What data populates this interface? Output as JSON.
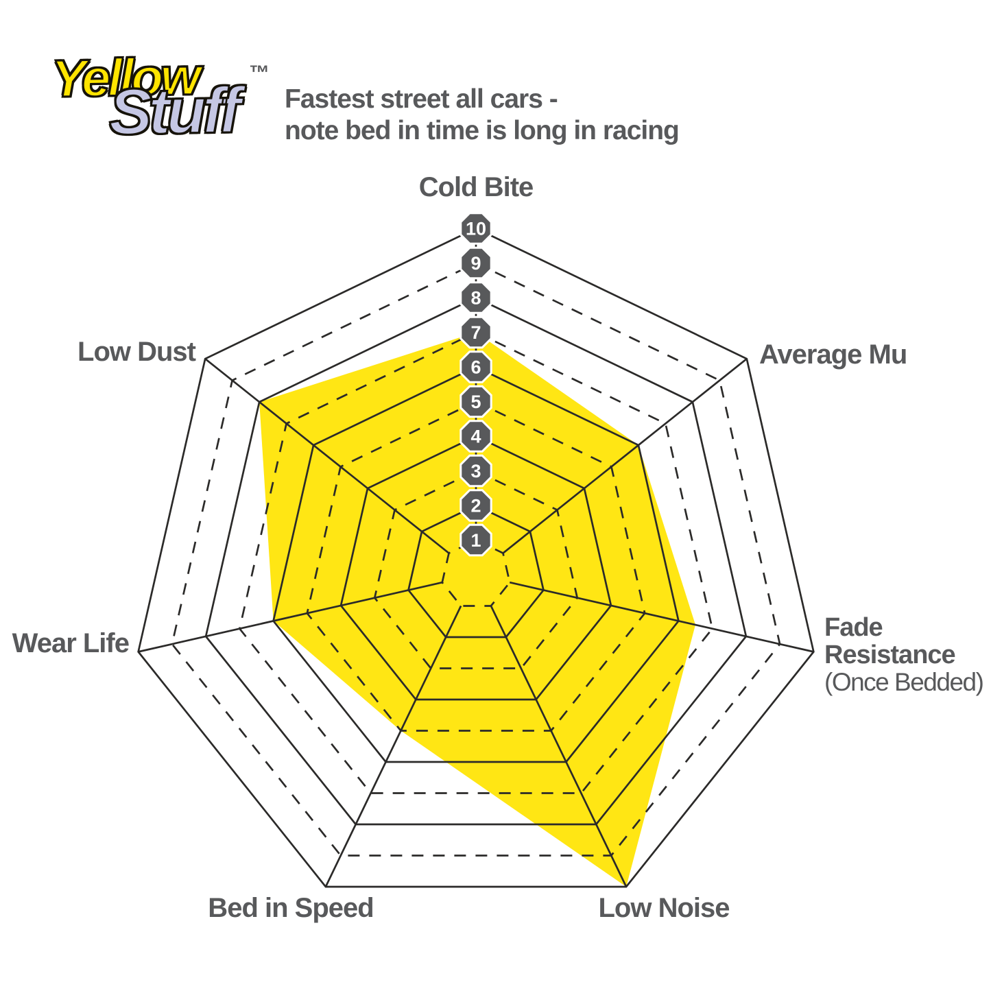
{
  "logo": {
    "line1": "Yellow",
    "line2": "Stuff",
    "trademark": "™"
  },
  "subtitle": {
    "line1": "Fastest street all cars -",
    "line2": "note bed in time is long in racing"
  },
  "chart_data": {
    "type": "radar",
    "title": "EBC Yellowstuff brake pad performance radar",
    "categories": [
      "Cold Bite",
      "Average Mu",
      "Fade Resistance (Once Bedded)",
      "Low Noise",
      "Bed in Speed",
      "Wear Life",
      "Low Dust"
    ],
    "values": [
      7,
      6,
      6.5,
      10,
      5,
      6,
      8
    ],
    "axes": [
      {
        "label": "Cold Bite",
        "value": 7
      },
      {
        "label": "Average Mu",
        "value": 6
      },
      {
        "label": "Fade Resistance",
        "sublabel": "(Once Bedded)",
        "value": 6.5
      },
      {
        "label": "Low Noise",
        "value": 10
      },
      {
        "label": "Bed in Speed",
        "value": 5
      },
      {
        "label": "Wear Life",
        "value": 6
      },
      {
        "label": "Low Dust",
        "value": 8
      }
    ],
    "scale": {
      "min": 1,
      "max": 10,
      "ticks": [
        1,
        2,
        3,
        4,
        5,
        6,
        7,
        8,
        9,
        10
      ]
    },
    "grid": {
      "rings": 10,
      "odd_rings_dashed": true,
      "spokes_start_at_ring": 1,
      "legend": "none"
    },
    "colors": {
      "fill": "#FFE614",
      "grid_line": "#2b2a29",
      "badge_fill": "#58595B",
      "badge_border": "#FFFFFF",
      "badge_text": "#FFFFFF",
      "label_text": "#58595B",
      "logo_yellow": "#FFE400",
      "logo_lavender": "#C5C7E4",
      "background": "#FFFFFF"
    }
  }
}
